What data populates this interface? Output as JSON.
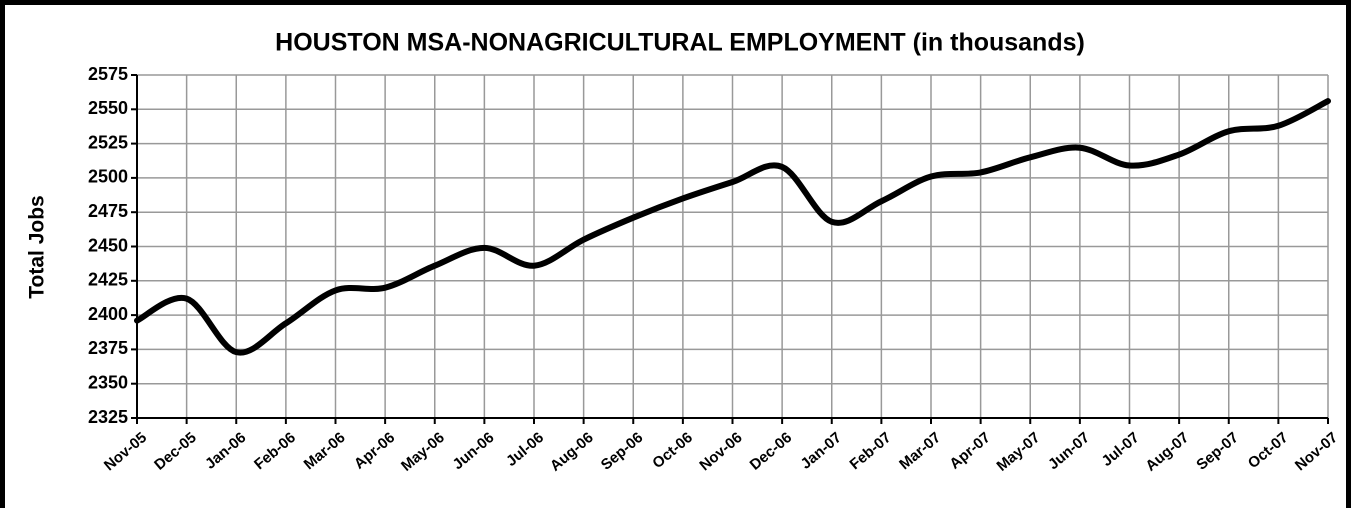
{
  "chart_data": {
    "type": "line",
    "title": "HOUSTON MSA-NONAGRICULTURAL EMPLOYMENT (in thousands)",
    "y_label": "Total Jobs",
    "categories": [
      "Nov-05",
      "Dec-05",
      "Jan-06",
      "Feb-06",
      "Mar-06",
      "Apr-06",
      "May-06",
      "Jun-06",
      "Jul-06",
      "Aug-06",
      "Sep-06",
      "Oct-06",
      "Nov-06",
      "Dec-06",
      "Jan-07",
      "Feb-07",
      "Mar-07",
      "Apr-07",
      "May-07",
      "Jun-07",
      "Jul-07",
      "Aug-07",
      "Sep-07",
      "Oct-07",
      "Nov-07"
    ],
    "series": [
      {
        "name": "Total Jobs",
        "color": "#000000",
        "values": [
          2396,
          2412,
          2373,
          2394,
          2418,
          2420,
          2436,
          2449,
          2436,
          2455,
          2471,
          2485,
          2497,
          2508,
          2468,
          2483,
          2501,
          2504,
          2515,
          2522,
          2509,
          2517,
          2534,
          2538,
          2556
        ]
      }
    ],
    "ylim": [
      2325,
      2575
    ],
    "yticks": [
      2325,
      2350,
      2375,
      2400,
      2425,
      2450,
      2475,
      2500,
      2525,
      2550,
      2575
    ],
    "grid": true
  }
}
